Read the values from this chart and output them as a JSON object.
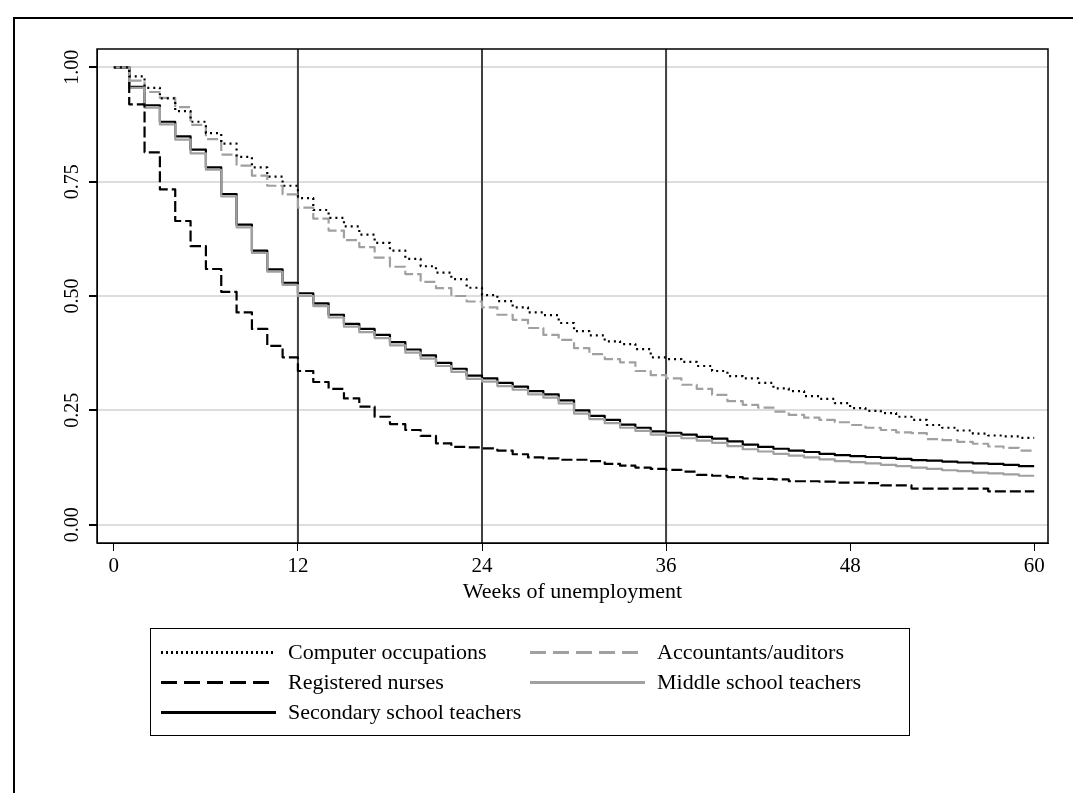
{
  "chart_data": {
    "type": "step",
    "xlabel": "Weeks of unemployment",
    "x": [
      0,
      1,
      2,
      3,
      4,
      5,
      6,
      7,
      8,
      9,
      10,
      11,
      12,
      13,
      14,
      15,
      16,
      17,
      18,
      19,
      20,
      21,
      22,
      23,
      24,
      25,
      26,
      27,
      28,
      29,
      30,
      31,
      32,
      33,
      34,
      35,
      36,
      37,
      38,
      39,
      40,
      41,
      42,
      43,
      44,
      45,
      46,
      47,
      48,
      49,
      50,
      51,
      52,
      53,
      54,
      55,
      56,
      57,
      58,
      59,
      60
    ],
    "xlim": [
      -1.1,
      60.9
    ],
    "xticks": [
      0,
      12,
      24,
      36,
      48,
      60
    ],
    "ylim": [
      -0.04,
      1.04
    ],
    "yticks": [
      {
        "value": 0,
        "label": "0.00"
      },
      {
        "value": 0.25,
        "label": "0.25"
      },
      {
        "value": 0.5,
        "label": "0.50"
      },
      {
        "value": 0.75,
        "label": "0.75"
      },
      {
        "value": 1,
        "label": "1.00"
      }
    ],
    "grid": "y",
    "legend": "bottom",
    "ref_lines": [
      {
        "axis": "x",
        "value": 12,
        "color": "#404040"
      },
      {
        "axis": "x",
        "value": 24,
        "color": "#404040"
      },
      {
        "axis": "x",
        "value": 36,
        "color": "#404040"
      }
    ],
    "series": [
      {
        "name": "Computer occupations",
        "color": "#000000",
        "line_style": "dotted",
        "values": [
          1,
          0.98,
          0.955,
          0.932,
          0.904,
          0.881,
          0.856,
          0.833,
          0.804,
          0.781,
          0.761,
          0.741,
          0.714,
          0.688,
          0.671,
          0.652,
          0.634,
          0.616,
          0.599,
          0.581,
          0.565,
          0.551,
          0.537,
          0.518,
          0.502,
          0.489,
          0.475,
          0.464,
          0.458,
          0.441,
          0.423,
          0.414,
          0.401,
          0.395,
          0.384,
          0.366,
          0.362,
          0.356,
          0.347,
          0.336,
          0.325,
          0.32,
          0.31,
          0.298,
          0.292,
          0.281,
          0.275,
          0.266,
          0.255,
          0.249,
          0.244,
          0.236,
          0.229,
          0.218,
          0.212,
          0.206,
          0.199,
          0.195,
          0.193,
          0.19,
          0.19
        ]
      },
      {
        "name": "Accountants/auditors",
        "color": "#a0a0a0",
        "line_style": "dashed",
        "values": [
          1,
          0.971,
          0.946,
          0.933,
          0.913,
          0.874,
          0.843,
          0.809,
          0.785,
          0.763,
          0.741,
          0.722,
          0.693,
          0.669,
          0.643,
          0.622,
          0.607,
          0.584,
          0.564,
          0.548,
          0.531,
          0.517,
          0.5,
          0.488,
          0.475,
          0.459,
          0.448,
          0.43,
          0.415,
          0.404,
          0.386,
          0.373,
          0.362,
          0.355,
          0.336,
          0.327,
          0.32,
          0.306,
          0.297,
          0.284,
          0.27,
          0.262,
          0.256,
          0.247,
          0.24,
          0.234,
          0.229,
          0.224,
          0.218,
          0.212,
          0.207,
          0.202,
          0.2,
          0.187,
          0.185,
          0.181,
          0.177,
          0.171,
          0.168,
          0.162,
          0.162
        ]
      },
      {
        "name": "Registered nurses",
        "color": "#000000",
        "line_style": "dashed",
        "values": [
          1,
          0.919,
          0.814,
          0.733,
          0.664,
          0.609,
          0.559,
          0.509,
          0.464,
          0.428,
          0.391,
          0.366,
          0.336,
          0.312,
          0.297,
          0.276,
          0.258,
          0.236,
          0.22,
          0.207,
          0.194,
          0.178,
          0.17,
          0.169,
          0.167,
          0.162,
          0.154,
          0.147,
          0.145,
          0.142,
          0.142,
          0.139,
          0.133,
          0.129,
          0.125,
          0.122,
          0.12,
          0.116,
          0.109,
          0.107,
          0.104,
          0.101,
          0.1,
          0.099,
          0.095,
          0.095,
          0.094,
          0.092,
          0.092,
          0.091,
          0.086,
          0.086,
          0.079,
          0.079,
          0.079,
          0.079,
          0.079,
          0.073,
          0.073,
          0.073,
          0.073
        ]
      },
      {
        "name": "Middle school teachers",
        "color": "#a0a0a0",
        "line_style": "solid",
        "values": [
          1,
          0.955,
          0.912,
          0.875,
          0.842,
          0.812,
          0.776,
          0.718,
          0.65,
          0.594,
          0.553,
          0.524,
          0.5,
          0.478,
          0.453,
          0.433,
          0.421,
          0.408,
          0.392,
          0.376,
          0.363,
          0.347,
          0.334,
          0.319,
          0.313,
          0.303,
          0.295,
          0.285,
          0.278,
          0.265,
          0.243,
          0.231,
          0.222,
          0.212,
          0.205,
          0.197,
          0.194,
          0.189,
          0.184,
          0.179,
          0.172,
          0.165,
          0.16,
          0.155,
          0.151,
          0.147,
          0.143,
          0.139,
          0.137,
          0.134,
          0.131,
          0.128,
          0.125,
          0.122,
          0.119,
          0.117,
          0.114,
          0.112,
          0.11,
          0.107,
          0.107
        ]
      },
      {
        "name": "Secondary school teachers",
        "color": "#000000",
        "line_style": "solid",
        "values": [
          1,
          0.957,
          0.917,
          0.881,
          0.849,
          0.82,
          0.781,
          0.723,
          0.656,
          0.599,
          0.558,
          0.529,
          0.506,
          0.484,
          0.459,
          0.439,
          0.428,
          0.415,
          0.399,
          0.383,
          0.37,
          0.354,
          0.341,
          0.326,
          0.32,
          0.31,
          0.302,
          0.292,
          0.285,
          0.272,
          0.25,
          0.238,
          0.229,
          0.219,
          0.212,
          0.204,
          0.201,
          0.197,
          0.192,
          0.188,
          0.182,
          0.175,
          0.17,
          0.166,
          0.162,
          0.159,
          0.155,
          0.152,
          0.15,
          0.148,
          0.146,
          0.144,
          0.141,
          0.14,
          0.138,
          0.136,
          0.134,
          0.133,
          0.131,
          0.128,
          0.128
        ]
      }
    ]
  }
}
